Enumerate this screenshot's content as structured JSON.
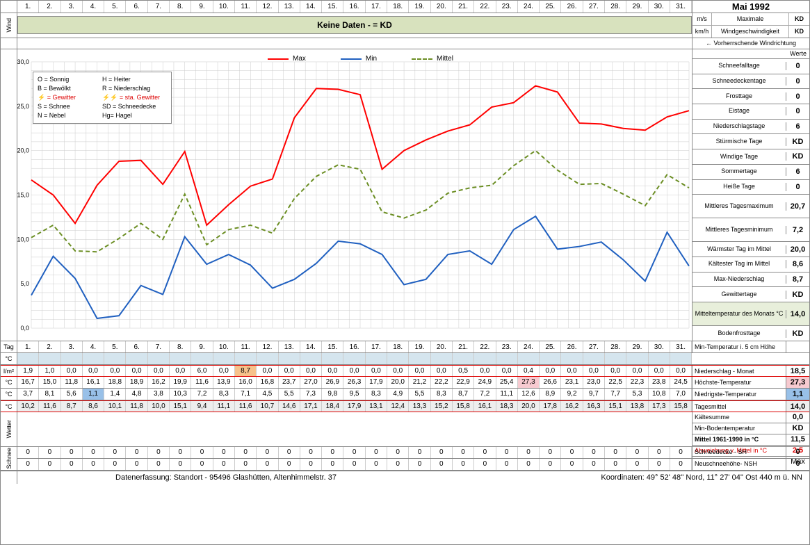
{
  "title": "Mai 1992",
  "days": [
    "1.",
    "2.",
    "3.",
    "4.",
    "5.",
    "6.",
    "7.",
    "8.",
    "9.",
    "10.",
    "11.",
    "12.",
    "13.",
    "14.",
    "15.",
    "16.",
    "17.",
    "18.",
    "19.",
    "20.",
    "21.",
    "22.",
    "23.",
    "24.",
    "25.",
    "26.",
    "27.",
    "28.",
    "29.",
    "30.",
    "31."
  ],
  "wind": {
    "label": "Wind",
    "kd_text": "Keine Daten -  = KD",
    "rows": [
      {
        "unit": "m/s",
        "label": "Maximale",
        "val": "KD"
      },
      {
        "unit": "km/h",
        "label": "Windgeschwindigkeit",
        "val": "KD"
      }
    ],
    "windir": "← Vorherrschende Windrichtung",
    "werte": "Werte"
  },
  "chart": {
    "ylabel_left": "30,0",
    "ymin": 0,
    "ymax": 30,
    "ystep": 5,
    "yticks": [
      "0,0",
      "5,0",
      "10,0",
      "15,0",
      "20,0",
      "25,0",
      "30,0"
    ],
    "grid_color": "#cccccc",
    "bg": "#ffffff",
    "series": {
      "max": {
        "label": "Max",
        "color": "#ff0000",
        "dash": "",
        "width": 2,
        "vals": [
          16.7,
          15.0,
          11.8,
          16.1,
          18.8,
          18.9,
          16.2,
          19.9,
          11.6,
          13.9,
          16.0,
          16.8,
          23.7,
          27.0,
          26.9,
          26.3,
          17.9,
          20.0,
          21.2,
          22.2,
          22.9,
          24.9,
          25.4,
          27.3,
          26.6,
          23.1,
          23.0,
          22.5,
          22.3,
          23.8,
          24.5
        ]
      },
      "min": {
        "label": "Min",
        "color": "#2060c0",
        "dash": "",
        "width": 2,
        "vals": [
          3.7,
          8.1,
          5.6,
          1.1,
          1.4,
          4.8,
          3.8,
          10.3,
          7.2,
          8.3,
          7.1,
          4.5,
          5.5,
          7.3,
          9.8,
          9.5,
          8.3,
          4.9,
          5.5,
          8.3,
          8.7,
          7.2,
          11.1,
          12.6,
          8.9,
          9.2,
          9.7,
          7.7,
          5.3,
          10.8,
          7.0
        ]
      },
      "mittel": {
        "label": "Mittel",
        "color": "#6b8e23",
        "dash": "6,4",
        "width": 2,
        "vals": [
          10.2,
          11.6,
          8.7,
          8.6,
          10.1,
          11.8,
          10.0,
          15.1,
          9.4,
          11.1,
          11.6,
          10.7,
          14.6,
          17.1,
          18.4,
          17.9,
          13.1,
          12.4,
          13.3,
          15.2,
          15.8,
          16.1,
          18.3,
          20.0,
          17.8,
          16.2,
          16.3,
          15.1,
          13.8,
          17.3,
          15.8
        ]
      }
    },
    "legend_key": [
      [
        "O = Sonnig",
        "H = Heiter"
      ],
      [
        "B = Bewölkt",
        "R = Niederschlag"
      ],
      [
        "⚡ = Gewitter",
        "⚡⚡ = sta. Gewitter"
      ],
      [
        "S = Schnee",
        "SD = Schneedecke"
      ],
      [
        "N = Nebel",
        "Hg= Hagel"
      ]
    ]
  },
  "stats": [
    {
      "label": "Schneefalltage",
      "val": "0"
    },
    {
      "label": "Schneedeckentage",
      "val": "0"
    },
    {
      "label": "Frosttage",
      "val": "0"
    },
    {
      "label": "Eistage",
      "val": "0"
    },
    {
      "label": "Niederschlagstage",
      "val": "6"
    },
    {
      "label": "Stürmische Tage",
      "val": "KD"
    },
    {
      "label": "Windige Tage",
      "val": "KD"
    },
    {
      "label": "Sommertage",
      "val": "6"
    },
    {
      "label": "Heiße Tage",
      "val": "0"
    },
    {
      "label": "Mittleres Tagesmaximum",
      "val": "20,7",
      "tall": true
    },
    {
      "label": "Mittleres Tagesminimum",
      "val": "7,2",
      "tall": true
    },
    {
      "label": "Wärmster Tag im Mittel",
      "val": "20,0"
    },
    {
      "label": "Kältester Tag im Mittel",
      "val": "8,6"
    },
    {
      "label": "Max-Niederschlag",
      "val": "8,7"
    },
    {
      "label": "Gewittertage",
      "val": "KD"
    },
    {
      "label": "Mitteltemperatur des Monats °C",
      "val": "14,0",
      "hl": true,
      "tall": true
    },
    {
      "label": "Bodenfrosttage",
      "val": "KD"
    }
  ],
  "rows": {
    "tag_label": "Tag",
    "soilmin": {
      "unit": "°C",
      "rlabel": "Min-Temperatur i. 5 cm Höhe",
      "rval": "",
      "bg": "bg-blue",
      "empty": true
    },
    "precip": {
      "unit": "l/m²",
      "rlabel": "Niederschlag - Monat",
      "rval": "18,5",
      "vals": [
        "1,9",
        "1,0",
        "0,0",
        "0,0",
        "0,0",
        "0,0",
        "0,0",
        "0,0",
        "6,0",
        "0,0",
        "8,7",
        "0,0",
        "0,0",
        "0,0",
        "0,0",
        "0,0",
        "0,0",
        "0,0",
        "0,0",
        "0,0",
        "0,5",
        "0,0",
        "0,0",
        "0,4",
        "0,0",
        "0,0",
        "0,0",
        "0,0",
        "0,0",
        "0,0",
        "0,0"
      ],
      "hl_idx": 10,
      "hl_cls": "bg-orange"
    },
    "tmax": {
      "unit": "°C",
      "rlabel": "Höchste-Temperatur",
      "rval": "27,3",
      "vals": [
        "16,7",
        "15,0",
        "11,8",
        "16,1",
        "18,8",
        "18,9",
        "16,2",
        "19,9",
        "11,6",
        "13,9",
        "16,0",
        "16,8",
        "23,7",
        "27,0",
        "26,9",
        "26,3",
        "17,9",
        "20,0",
        "21,2",
        "22,2",
        "22,9",
        "24,9",
        "25,4",
        "27,3",
        "26,6",
        "23,1",
        "23,0",
        "22,5",
        "22,3",
        "23,8",
        "24,5"
      ],
      "hl_idx": 23,
      "hl_cls": "bg-pink",
      "rval_cls": "bg-pink"
    },
    "tmin": {
      "unit": "°C",
      "rlabel": "Niedrigste-Temperatur",
      "rval": "1,1",
      "vals": [
        "3,7",
        "8,1",
        "5,6",
        "1,1",
        "1,4",
        "4,8",
        "3,8",
        "10,3",
        "7,2",
        "8,3",
        "7,1",
        "4,5",
        "5,5",
        "7,3",
        "9,8",
        "9,5",
        "8,3",
        "4,9",
        "5,5",
        "8,3",
        "8,7",
        "7,2",
        "11,1",
        "12,6",
        "8,9",
        "9,2",
        "9,7",
        "7,7",
        "5,3",
        "10,8",
        "7,0"
      ],
      "hl_idx": 3,
      "hl_cls": "bg-lblue",
      "rval_cls": "bg-lblue"
    },
    "tmean": {
      "unit": "°C",
      "rlabel": "Tagesmittel",
      "rval": "14,0",
      "bg": "bg-grey",
      "rval_cls": "bg-grey",
      "vals": [
        "10,2",
        "11,6",
        "8,7",
        "8,6",
        "10,1",
        "11,8",
        "10,0",
        "15,1",
        "9,4",
        "11,1",
        "11,6",
        "10,7",
        "14,6",
        "17,1",
        "18,4",
        "17,9",
        "13,1",
        "12,4",
        "13,3",
        "15,2",
        "15,8",
        "16,1",
        "18,3",
        "20,0",
        "17,8",
        "16,2",
        "16,3",
        "15,1",
        "13,8",
        "17,3",
        "15,8"
      ]
    }
  },
  "extra_right": [
    {
      "l": "Kältesumme",
      "v": "0,0"
    },
    {
      "l": "Min-Bodentemperatur",
      "v": "KD"
    },
    {
      "l": "Mittel 1961-1990 in °C",
      "v": "11,5",
      "bold": true
    },
    {
      "l": "Abweichung v. Mittel in °C",
      "v": "2,5",
      "red": true
    },
    {
      "l": "",
      "v": "Max",
      "maxrow": true
    }
  ],
  "wetter_label": "Wetter",
  "schnee": {
    "label": "Schnee",
    "rows": [
      {
        "vals": [
          "0",
          "0",
          "0",
          "0",
          "0",
          "0",
          "0",
          "0",
          "0",
          "0",
          "0",
          "0",
          "0",
          "0",
          "0",
          "0",
          "0",
          "0",
          "0",
          "0",
          "0",
          "0",
          "0",
          "0",
          "0",
          "0",
          "0",
          "0",
          "0",
          "0",
          "0"
        ],
        "rl": "Schneedecke -  SH",
        "rv": "0"
      },
      {
        "vals": [
          "0",
          "0",
          "0",
          "0",
          "0",
          "0",
          "0",
          "0",
          "0",
          "0",
          "0",
          "0",
          "0",
          "0",
          "0",
          "0",
          "0",
          "0",
          "0",
          "0",
          "0",
          "0",
          "0",
          "0",
          "0",
          "0",
          "0",
          "0",
          "0",
          "0",
          "0"
        ],
        "rl": "Neuschneehöhe- NSH",
        "rv": "0"
      }
    ]
  },
  "footer": {
    "left": "Datenerfassung:  Standort -  95496  Glashütten, Altenhimmelstr. 37",
    "right": "Koordinaten:  49° 52' 48'' Nord,   11° 27' 04'' Ost   440 m ü. NN"
  }
}
